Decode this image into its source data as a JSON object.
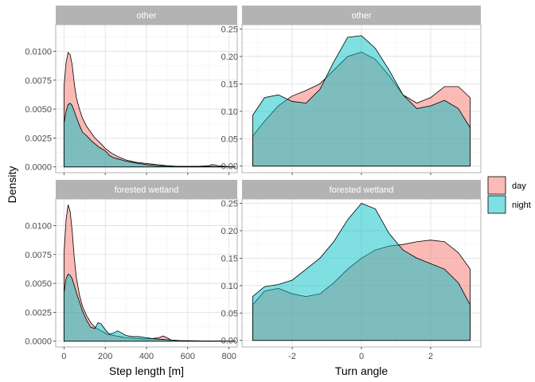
{
  "chart_data": {
    "type": "area",
    "shared_ylabel": "Density",
    "legend": {
      "position": "right",
      "entries": [
        {
          "name": "day",
          "color": "#F8766D"
        },
        {
          "name": "night",
          "color": "#00BFC4"
        }
      ]
    },
    "panels": [
      {
        "id": "step-other",
        "strip": "other",
        "xlabel": "",
        "xlim": [
          -40,
          840
        ],
        "ylim": [
          -0.0005,
          0.0123
        ],
        "xticks": [
          0,
          200,
          400,
          600,
          800
        ],
        "yticks": [
          0.0,
          0.0025,
          0.005,
          0.0075,
          0.01
        ],
        "ytick_labels": [
          "0.0000",
          "0.0025",
          "0.0050",
          "0.0075",
          "0.0100"
        ],
        "show_xtick_labels": false,
        "series": [
          {
            "name": "day",
            "x": [
              0,
              10,
              20,
              30,
              40,
              50,
              60,
              75,
              90,
              110,
              130,
              150,
              180,
              200,
              230,
              260,
              300,
              350,
              400,
              450,
              500,
              550,
              600,
              650,
              700,
              720,
              750,
              800,
              830
            ],
            "y": [
              0.0069,
              0.009,
              0.0099,
              0.0097,
              0.0088,
              0.0072,
              0.006,
              0.005,
              0.0042,
              0.0035,
              0.003,
              0.0025,
              0.002,
              0.0016,
              0.0012,
              0.0009,
              0.0006,
              0.0004,
              0.0003,
              0.0002,
              0.0001,
              5e-05,
              5e-05,
              5e-05,
              0.0001,
              0.0002,
              0.0001,
              3e-05,
              2e-05
            ]
          },
          {
            "name": "night",
            "x": [
              0,
              10,
              20,
              30,
              40,
              50,
              60,
              75,
              90,
              110,
              130,
              150,
              170,
              180,
              200,
              220,
              240,
              260,
              280,
              300,
              330,
              360,
              400,
              450,
              500,
              550,
              600,
              650,
              700,
              720,
              750,
              800,
              830
            ],
            "y": [
              0.0038,
              0.0048,
              0.0054,
              0.0055,
              0.0053,
              0.0048,
              0.0043,
              0.0036,
              0.003,
              0.0027,
              0.0023,
              0.002,
              0.0017,
              0.0016,
              0.0014,
              0.001,
              0.0008,
              0.0007,
              0.0006,
              0.0005,
              0.0004,
              0.0003,
              0.0002,
              0.0001,
              8e-05,
              5e-05,
              3e-05,
              5e-05,
              4e-05,
              3e-05,
              2e-05,
              1e-05,
              1e-05
            ]
          }
        ]
      },
      {
        "id": "turn-other",
        "strip": "other",
        "xlabel": "",
        "xlim": [
          -3.45,
          3.45
        ],
        "ylim": [
          -0.012,
          0.258
        ],
        "xticks": [
          -2,
          0,
          2
        ],
        "yticks": [
          0.0,
          0.05,
          0.1,
          0.15,
          0.2,
          0.25
        ],
        "ytick_labels": [
          "0.00",
          "0.05",
          "0.10",
          "0.15",
          "0.20",
          "0.25"
        ],
        "show_xtick_labels": false,
        "series": [
          {
            "name": "day",
            "x": [
              -3.14,
              -2.8,
              -2.4,
              -2.0,
              -1.6,
              -1.2,
              -0.8,
              -0.4,
              0.0,
              0.4,
              0.8,
              1.2,
              1.6,
              2.0,
              2.4,
              2.8,
              3.14
            ],
            "y": [
              0.055,
              0.082,
              0.11,
              0.128,
              0.138,
              0.15,
              0.175,
              0.2,
              0.208,
              0.195,
              0.165,
              0.13,
              0.115,
              0.125,
              0.145,
              0.145,
              0.125
            ]
          },
          {
            "name": "night",
            "x": [
              -3.14,
              -2.8,
              -2.4,
              -2.0,
              -1.6,
              -1.2,
              -0.8,
              -0.4,
              0.0,
              0.4,
              0.8,
              1.2,
              1.6,
              2.0,
              2.4,
              2.8,
              3.14
            ],
            "y": [
              0.093,
              0.125,
              0.13,
              0.118,
              0.115,
              0.14,
              0.19,
              0.235,
              0.238,
              0.215,
              0.175,
              0.13,
              0.105,
              0.11,
              0.12,
              0.105,
              0.07
            ]
          }
        ]
      },
      {
        "id": "step-forested",
        "strip": "forested wetland",
        "xlabel": "Step length [m]",
        "xlim": [
          -40,
          840
        ],
        "ylim": [
          -0.0005,
          0.0123
        ],
        "xticks": [
          0,
          200,
          400,
          600,
          800
        ],
        "yticks": [
          0.0,
          0.0025,
          0.005,
          0.0075,
          0.01
        ],
        "ytick_labels": [
          "0.0000",
          "0.0025",
          "0.0050",
          "0.0075",
          "0.0100"
        ],
        "show_xtick_labels": true,
        "series": [
          {
            "name": "day",
            "x": [
              0,
              10,
              20,
              30,
              40,
              50,
              60,
              75,
              90,
              110,
              130,
              150,
              170,
              190,
              210,
              240,
              270,
              300,
              340,
              380,
              420,
              460,
              480,
              500,
              520,
              560,
              600,
              650,
              700,
              750,
              800,
              830
            ],
            "y": [
              0.0075,
              0.0105,
              0.0118,
              0.0112,
              0.0095,
              0.0072,
              0.0055,
              0.004,
              0.003,
              0.0022,
              0.0016,
              0.0012,
              0.001,
              0.0008,
              0.0006,
              0.0005,
              0.0004,
              0.0003,
              0.00025,
              0.0002,
              0.0002,
              0.0003,
              0.00045,
              0.0003,
              0.0001,
              5e-05,
              4e-05,
              3e-05,
              2e-05,
              2e-05,
              1e-05,
              1e-05
            ]
          },
          {
            "name": "night",
            "x": [
              0,
              10,
              20,
              30,
              40,
              50,
              60,
              75,
              90,
              110,
              130,
              150,
              165,
              180,
              200,
              220,
              240,
              260,
              280,
              300,
              330,
              360,
              400,
              440,
              480,
              520,
              560,
              600,
              650,
              700,
              750,
              800,
              830
            ],
            "y": [
              0.0042,
              0.0054,
              0.0058,
              0.0057,
              0.0054,
              0.0048,
              0.0042,
              0.0034,
              0.0026,
              0.0018,
              0.0012,
              0.0011,
              0.0016,
              0.0015,
              0.001,
              0.0006,
              0.0007,
              0.0009,
              0.0007,
              0.0005,
              0.0004,
              0.0004,
              0.0003,
              0.0002,
              0.00015,
              0.0001,
              5e-05,
              3e-05,
              2e-05,
              2e-05,
              1e-05,
              1e-05,
              1e-05
            ]
          }
        ]
      },
      {
        "id": "turn-forested",
        "strip": "forested wetland",
        "xlabel": "Turn angle",
        "xlim": [
          -3.45,
          3.45
        ],
        "ylim": [
          -0.012,
          0.258
        ],
        "xticks": [
          -2,
          0,
          2
        ],
        "yticks": [
          0.0,
          0.05,
          0.1,
          0.15,
          0.2,
          0.25
        ],
        "ytick_labels": [
          "0.00",
          "0.05",
          "0.10",
          "0.15",
          "0.20",
          "0.25"
        ],
        "show_xtick_labels": true,
        "series": [
          {
            "name": "day",
            "x": [
              -3.14,
              -2.8,
              -2.4,
              -2.0,
              -1.6,
              -1.2,
              -0.8,
              -0.4,
              0.0,
              0.4,
              0.8,
              1.2,
              1.6,
              2.0,
              2.4,
              2.8,
              3.14
            ],
            "y": [
              0.065,
              0.09,
              0.095,
              0.085,
              0.08,
              0.085,
              0.105,
              0.13,
              0.15,
              0.165,
              0.172,
              0.175,
              0.18,
              0.183,
              0.18,
              0.16,
              0.13
            ]
          },
          {
            "name": "night",
            "x": [
              -3.14,
              -2.8,
              -2.4,
              -2.0,
              -1.6,
              -1.2,
              -0.8,
              -0.4,
              0.0,
              0.4,
              0.8,
              1.2,
              1.6,
              2.0,
              2.4,
              2.8,
              3.14
            ],
            "y": [
              0.08,
              0.098,
              0.102,
              0.11,
              0.13,
              0.15,
              0.18,
              0.22,
              0.25,
              0.24,
              0.195,
              0.165,
              0.15,
              0.14,
              0.13,
              0.105,
              0.065
            ]
          }
        ]
      }
    ]
  }
}
